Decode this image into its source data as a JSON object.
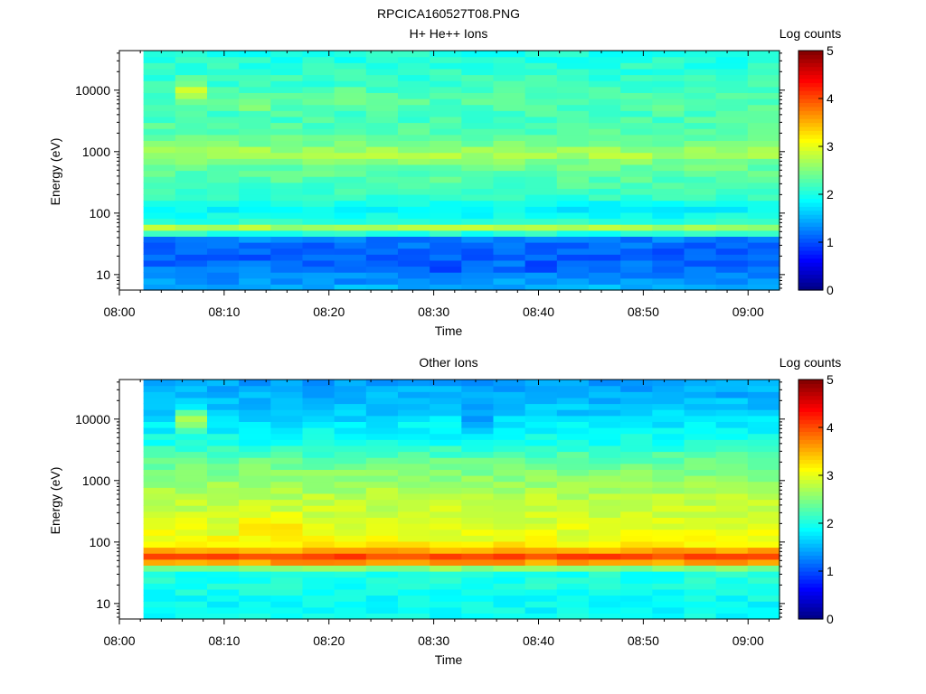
{
  "page_title": "RPCICA160527T08.PNG",
  "chart_data": [
    {
      "type": "heatmap",
      "title": "H+ He++ Ions",
      "xlabel": "Time",
      "ylabel": "Energy (eV)",
      "x_ticks": [
        "08:00",
        "08:10",
        "08:20",
        "08:30",
        "08:40",
        "08:50",
        "09:00"
      ],
      "x_range_minutes": [
        0,
        63
      ],
      "data_start_minute": 2.3,
      "y_scale": "log",
      "y_ticks": [
        10,
        100,
        1000,
        10000
      ],
      "y_tick_labels": [
        "10",
        "100",
        "1000",
        "10000"
      ],
      "y_range": [
        5.6,
        44000
      ],
      "colorbar": {
        "label": "Log counts",
        "range": [
          0,
          5
        ],
        "ticks": [
          "0",
          "1",
          "2",
          "3",
          "4",
          "5"
        ]
      },
      "n_time_bins": 20,
      "band_profile": [
        [
          6,
          1.5
        ],
        [
          9,
          1.3
        ],
        [
          13,
          1.2
        ],
        [
          18,
          1.1
        ],
        [
          25,
          1.1
        ],
        [
          34,
          1.2
        ],
        [
          40,
          1.3
        ],
        [
          45,
          1.8
        ],
        [
          52,
          2.5
        ],
        [
          58,
          2.8
        ],
        [
          65,
          2.2
        ],
        [
          80,
          2.0
        ],
        [
          100,
          1.9
        ],
        [
          130,
          1.8
        ],
        [
          160,
          2.1
        ],
        [
          250,
          2.2
        ],
        [
          400,
          2.3
        ],
        [
          600,
          2.4
        ],
        [
          800,
          2.6
        ],
        [
          950,
          2.8
        ],
        [
          1200,
          2.5
        ],
        [
          2000,
          2.3
        ],
        [
          4000,
          2.2
        ],
        [
          6000,
          2.3
        ],
        [
          10000,
          2.2
        ],
        [
          20000,
          2.1
        ],
        [
          44000,
          2.0
        ]
      ],
      "time_features": [
        {
          "bin": 1,
          "energy": 10000,
          "width": 0.25,
          "delta": 0.6
        },
        {
          "bin": 3,
          "energy": 6000,
          "width": 0.25,
          "delta": 0.3
        },
        {
          "bin": 6,
          "energy": 8000,
          "width": 0.25,
          "delta": 0.3
        },
        {
          "bin": 9,
          "energy": 14,
          "width": 0.08,
          "delta": -0.6
        },
        {
          "bin": 12,
          "energy": 14,
          "width": 0.08,
          "delta": -0.6
        }
      ],
      "jitter": 0.15,
      "seed": 7
    },
    {
      "type": "heatmap",
      "title": "Other Ions",
      "xlabel": "Time",
      "ylabel": "Energy (eV)",
      "x_ticks": [
        "08:00",
        "08:10",
        "08:20",
        "08:30",
        "08:40",
        "08:50",
        "09:00"
      ],
      "x_range_minutes": [
        0,
        63
      ],
      "data_start_minute": 2.3,
      "y_scale": "log",
      "y_ticks": [
        10,
        100,
        1000,
        10000
      ],
      "y_tick_labels": [
        "10",
        "100",
        "1000",
        "10000"
      ],
      "y_range": [
        5.6,
        44000
      ],
      "colorbar": {
        "label": "Log counts",
        "range": [
          0,
          5
        ],
        "ticks": [
          "0",
          "1",
          "2",
          "3",
          "4",
          "5"
        ]
      },
      "n_time_bins": 20,
      "band_profile": [
        [
          6,
          1.9
        ],
        [
          10,
          1.9
        ],
        [
          20,
          2.0
        ],
        [
          30,
          2.0
        ],
        [
          36,
          2.1
        ],
        [
          42,
          3.6
        ],
        [
          48,
          3.6
        ],
        [
          52,
          4.0
        ],
        [
          60,
          4.0
        ],
        [
          70,
          3.7
        ],
        [
          80,
          3.3
        ],
        [
          100,
          3.1
        ],
        [
          150,
          3.0
        ],
        [
          250,
          2.9
        ],
        [
          500,
          2.8
        ],
        [
          1000,
          2.6
        ],
        [
          2000,
          2.4
        ],
        [
          4000,
          2.0
        ],
        [
          8000,
          1.8
        ],
        [
          15000,
          1.6
        ],
        [
          44000,
          1.4
        ]
      ],
      "time_features": [
        {
          "bin": 1,
          "energy": 10000,
          "width": 0.3,
          "delta": 0.9
        },
        {
          "bin": 3,
          "energy": 200,
          "width": 0.25,
          "delta": 0.3
        },
        {
          "bin": 4,
          "energy": 200,
          "width": 0.25,
          "delta": 0.3
        },
        {
          "bin": 10,
          "energy": 10000,
          "width": 0.3,
          "delta": -0.3
        }
      ],
      "jitter": 0.15,
      "seed": 13
    }
  ]
}
